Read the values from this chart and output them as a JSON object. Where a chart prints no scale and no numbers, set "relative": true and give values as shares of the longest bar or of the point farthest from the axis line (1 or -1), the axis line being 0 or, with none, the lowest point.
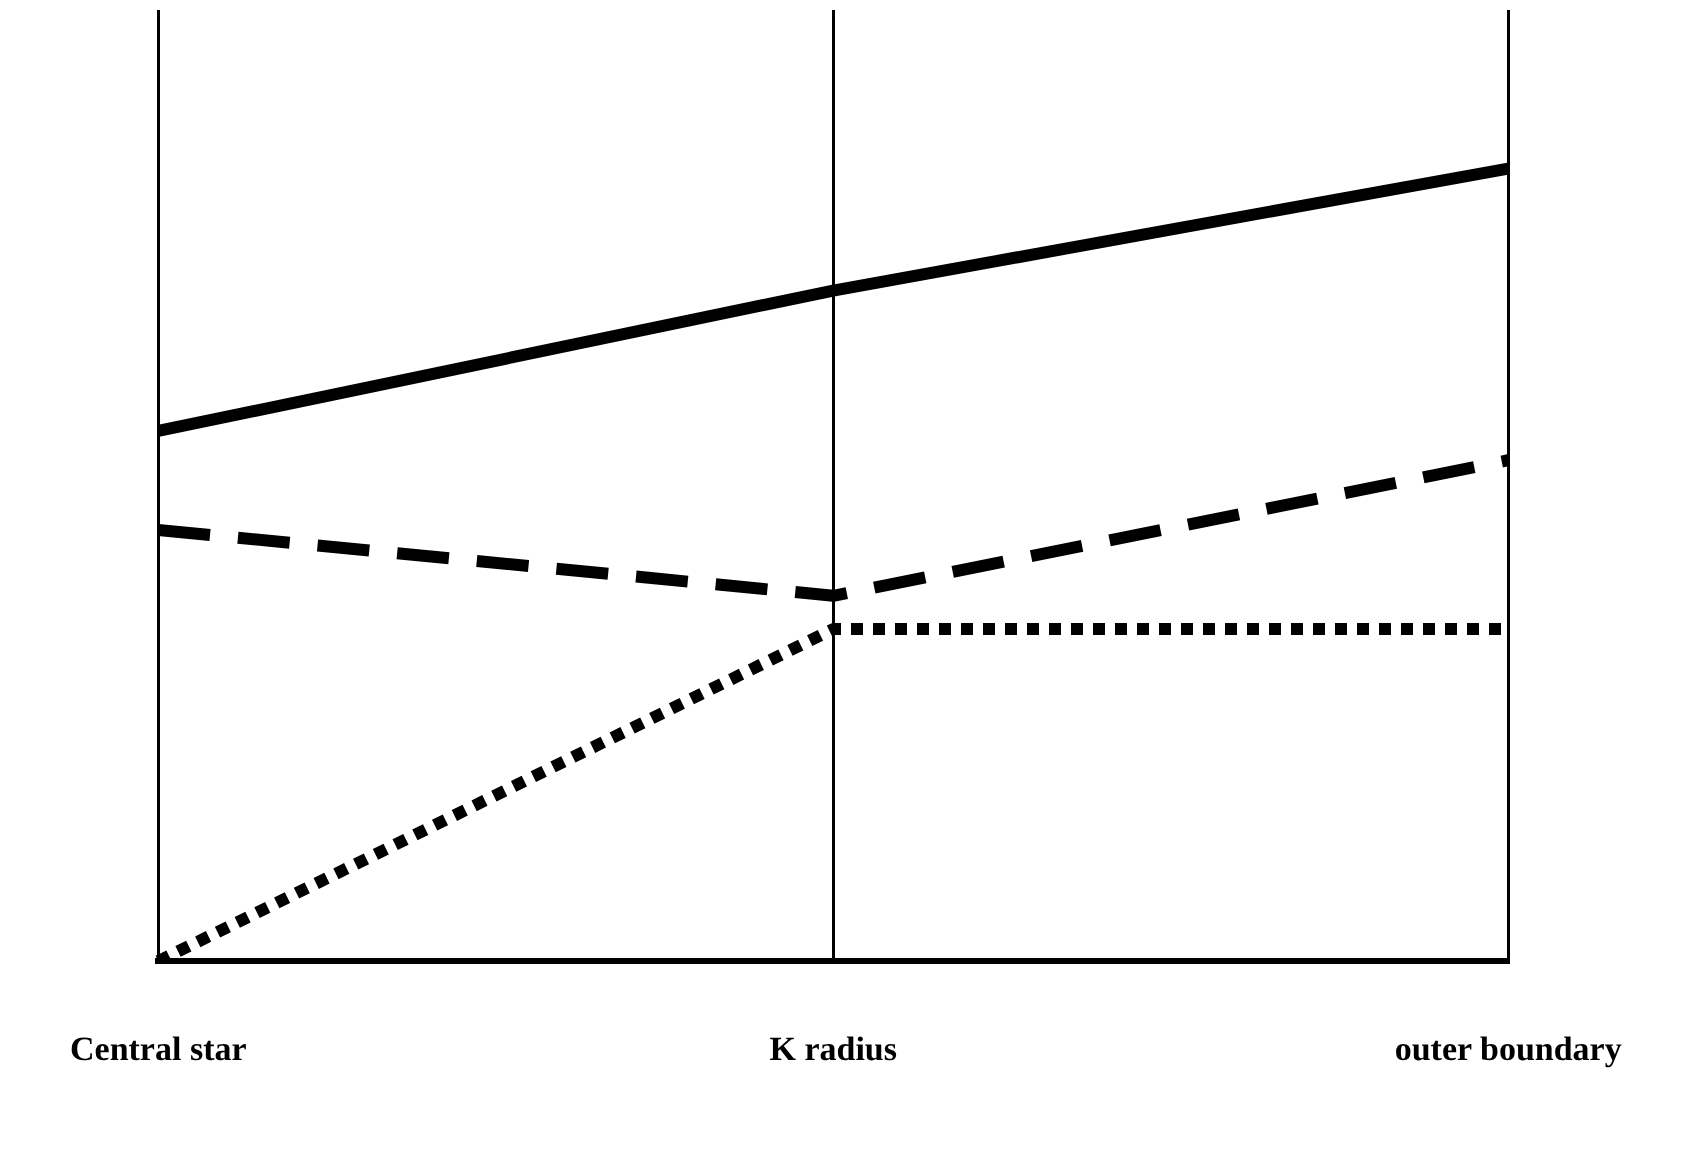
{
  "chart_data": {
    "type": "line",
    "relative": true,
    "categories": [
      "Central star",
      "K radius",
      "outer boundary"
    ],
    "grid": "x",
    "marker": "none",
    "series": [
      {
        "color": "#000000",
        "line_style": "solid",
        "values": [
          0.669,
          0.846,
          1
        ]
      },
      {
        "color": "#000000",
        "line_style": "dashed",
        "values": [
          0.544,
          0.461,
          0.632
        ]
      },
      {
        "color": "#000000",
        "line_style": "dotted",
        "values": [
          0,
          0.419,
          0.419
        ]
      }
    ]
  }
}
